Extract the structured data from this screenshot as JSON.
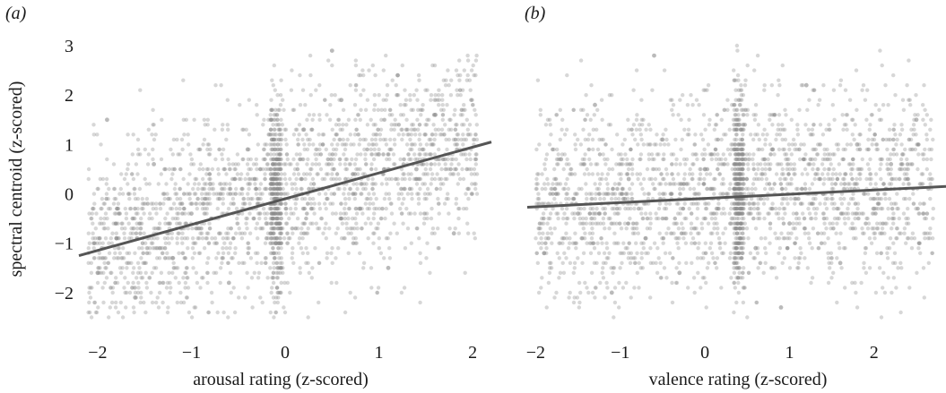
{
  "colors": {
    "points": "#8c8c8c",
    "fit_line": "#555555",
    "background": "#ffffff"
  },
  "chart_data": [
    {
      "type": "scatter",
      "panel_label": "(a)",
      "xlabel": "arousal rating (z-scored)",
      "ylabel": "spectral centroid (z-scored)",
      "xlim": [
        -2.2,
        2.2
      ],
      "ylim": [
        -2.6,
        3.2
      ],
      "xticks": [
        -2,
        -1,
        0,
        1,
        2
      ],
      "xtick_labels": [
        "−2",
        "−1",
        "0",
        "1",
        "2"
      ],
      "yticks": [
        -2,
        -1,
        0,
        1,
        2,
        3
      ],
      "ytick_labels": [
        "−2",
        "−1",
        "0",
        "1",
        "2",
        "3"
      ],
      "grid": false,
      "fit_line": {
        "x": [
          -2.2,
          2.2
        ],
        "y": [
          -1.25,
          1.05
        ]
      },
      "points_description": "dense cloud of several thousand semi-transparent grey points, vertical band at x ≈ -0.1",
      "sample_points": [
        [
          -2.0,
          -1.6
        ],
        [
          -1.8,
          -0.9
        ],
        [
          -1.6,
          -2.1
        ],
        [
          -1.4,
          0.6
        ],
        [
          -1.2,
          -1.3
        ],
        [
          -1.0,
          -0.4
        ],
        [
          -0.8,
          0.2
        ],
        [
          -0.6,
          -1.8
        ],
        [
          -0.4,
          0.9
        ],
        [
          -0.2,
          -0.6
        ],
        [
          -0.1,
          0.4
        ],
        [
          -0.1,
          -1.0
        ],
        [
          0.2,
          1.3
        ],
        [
          0.4,
          0.1
        ],
        [
          0.6,
          1.9
        ],
        [
          0.8,
          -0.3
        ],
        [
          1.0,
          0.8
        ],
        [
          1.2,
          2.4
        ],
        [
          1.4,
          0.5
        ],
        [
          1.6,
          1.6
        ],
        [
          1.8,
          -0.8
        ],
        [
          -1.9,
          1.5
        ],
        [
          0.5,
          2.9
        ],
        [
          1.1,
          -1.5
        ]
      ]
    },
    {
      "type": "scatter",
      "panel_label": "(b)",
      "xlabel": "valence rating (z-scored)",
      "ylabel": "",
      "xlim": [
        -2.1,
        2.85
      ],
      "ylim": [
        -2.6,
        3.2
      ],
      "xticks": [
        -2,
        -1,
        0,
        1,
        2
      ],
      "xtick_labels": [
        "−2",
        "−1",
        "0",
        "1",
        "2"
      ],
      "grid": false,
      "fit_line": {
        "x": [
          -2.1,
          2.85
        ],
        "y": [
          -0.27,
          0.15
        ]
      },
      "points_description": "dense cloud of several thousand semi-transparent grey points, vertical band at x ≈ 0.4",
      "sample_points": [
        [
          -1.9,
          -1.2
        ],
        [
          -1.7,
          0.7
        ],
        [
          -1.5,
          -0.4
        ],
        [
          -1.3,
          1.8
        ],
        [
          -1.1,
          -2.0
        ],
        [
          -0.9,
          0.3
        ],
        [
          -0.7,
          -0.9
        ],
        [
          -0.5,
          1.1
        ],
        [
          -0.3,
          -1.6
        ],
        [
          0.0,
          0.5
        ],
        [
          0.4,
          -0.2
        ],
        [
          0.4,
          1.4
        ],
        [
          0.6,
          -1.1
        ],
        [
          0.8,
          0.9
        ],
        [
          1.0,
          -0.6
        ],
        [
          1.2,
          2.2
        ],
        [
          1.4,
          0.0
        ],
        [
          1.6,
          -1.4
        ],
        [
          1.8,
          1.0
        ],
        [
          2.0,
          -0.3
        ],
        [
          2.2,
          0.6
        ],
        [
          2.5,
          1.5
        ],
        [
          -0.6,
          2.8
        ],
        [
          0.9,
          -2.3
        ]
      ]
    }
  ]
}
